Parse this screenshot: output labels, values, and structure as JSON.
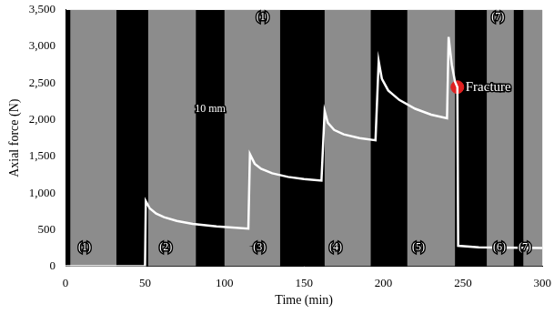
{
  "chart_data": {
    "type": "line",
    "x_label": "Time (min)",
    "y_label": "Axial force (N)",
    "xlim": [
      0,
      300
    ],
    "ylim": [
      0,
      3500
    ],
    "xticks": [
      0,
      50,
      100,
      150,
      200,
      250,
      300
    ],
    "yticks": [
      0,
      500,
      1000,
      1500,
      2000,
      2500,
      3000,
      3500
    ],
    "grid": false,
    "color": "#ffffff",
    "marker": "none",
    "line_style": "solid",
    "x": [
      0,
      50,
      50.5,
      53,
      57,
      62,
      70,
      80,
      95,
      115,
      116,
      119,
      123,
      130,
      140,
      150,
      161,
      163,
      165,
      169,
      175,
      185,
      195,
      197,
      199,
      203,
      210,
      220,
      230,
      240,
      241,
      243,
      245,
      246.5,
      247,
      260,
      300
    ],
    "values": [
      0,
      0,
      890,
      790,
      720,
      670,
      620,
      580,
      545,
      515,
      1530,
      1400,
      1330,
      1270,
      1220,
      1190,
      1170,
      2120,
      1960,
      1860,
      1800,
      1750,
      1720,
      2800,
      2560,
      2400,
      2270,
      2150,
      2070,
      2020,
      3130,
      2750,
      2520,
      2445,
      280,
      260,
      250
    ],
    "image_bands": [
      [
        3,
        32
      ],
      [
        52,
        82
      ],
      [
        100,
        135
      ],
      [
        163,
        192
      ],
      [
        215,
        245
      ],
      [
        265,
        282
      ],
      [
        288,
        300
      ]
    ],
    "background_color": "#000000",
    "band_color": "#8c8c8c",
    "markers": [
      {
        "text": "Fracture",
        "x": 246.5,
        "y": 2445,
        "color": "#e02020",
        "marker": "circle"
      }
    ],
    "annotations": [
      {
        "text": "(1)",
        "x": 12,
        "y": 260
      },
      {
        "text": "(2)",
        "x": 63,
        "y": 260
      },
      {
        "text": "(3)",
        "x": 122,
        "y": 260
      },
      {
        "text": "(4)",
        "x": 170,
        "y": 260
      },
      {
        "text": "(5)",
        "x": 222,
        "y": 260
      },
      {
        "text": "(6)",
        "x": 273,
        "y": 260
      },
      {
        "text": "(7)",
        "x": 289,
        "y": 260
      },
      {
        "text": "(1)",
        "x": 124,
        "y": 3400
      },
      {
        "text": "(7)",
        "x": 272,
        "y": 3400
      },
      {
        "text": "10 mm",
        "x": 91,
        "y": 2150
      }
    ]
  }
}
